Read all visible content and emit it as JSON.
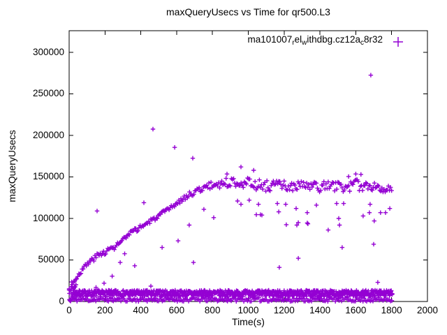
{
  "chart_data": {
    "type": "scatter",
    "title": "maxQueryUsecs vs Time for qr500.L3",
    "xlabel": "Time(s)",
    "ylabel": "maxQueryUsecs",
    "xlim": [
      0,
      2000
    ],
    "ylim": [
      0,
      326000
    ],
    "xticks": [
      0,
      200,
      400,
      600,
      800,
      1000,
      1200,
      1400,
      1600,
      1800,
      2000
    ],
    "yticks": [
      0,
      50000,
      100000,
      150000,
      200000,
      250000,
      300000
    ],
    "grid": false,
    "marker": "plus",
    "marker_color": "#9400d3",
    "axis_color": "#000000",
    "legend": {
      "position": "top-right-inside",
      "entries": [
        {
          "label_plain": "ma101007_rel_withdbg.cz12a_c8r32",
          "label_segments": [
            {
              "text": "ma101007"
            },
            {
              "text": "r",
              "sub": true
            },
            {
              "text": "el"
            },
            {
              "text": "w",
              "sub": true
            },
            {
              "text": "ithdbg.cz12a"
            },
            {
              "text": "c",
              "sub": true
            },
            {
              "text": "8r32"
            }
          ],
          "marker": "plus",
          "color": "#9400d3"
        }
      ]
    },
    "series": [
      {
        "name": "startup-cluster",
        "seed": 13,
        "step": 1.6,
        "control_points": [
          [
            0,
            13500
          ],
          [
            42,
            13500
          ]
        ],
        "jitter": 13500,
        "clip": [
          500,
          27500
        ]
      },
      {
        "name": "floor-band",
        "seed": 7,
        "step": 2,
        "control_points": [
          [
            18,
            9700
          ],
          [
            1805,
            9700
          ]
        ],
        "jitter": 3800,
        "clip": [
          5800,
          13600
        ]
      },
      {
        "name": "sub-floor",
        "seed": 11,
        "step": 7,
        "control_points": [
          [
            2,
            2300
          ],
          [
            1805,
            2300
          ]
        ],
        "jitter": 2400,
        "clip": [
          100,
          4800
        ]
      },
      {
        "name": "main-curve",
        "seed": 3,
        "step": 6,
        "control_points": [
          [
            0,
            13000
          ],
          [
            50,
            32000
          ],
          [
            100,
            45000
          ],
          [
            150,
            54000
          ],
          [
            200,
            60000
          ],
          [
            250,
            65000
          ],
          [
            300,
            74000
          ],
          [
            350,
            83000
          ],
          [
            400,
            90000
          ],
          [
            450,
            96000
          ],
          [
            500,
            103000
          ],
          [
            550,
            110000
          ],
          [
            600,
            118000
          ],
          [
            650,
            126000
          ],
          [
            700,
            132000
          ],
          [
            750,
            137000
          ],
          [
            800,
            140000
          ],
          [
            850,
            142000
          ],
          [
            900,
            143500
          ],
          [
            950,
            144500
          ],
          [
            1000,
            142500
          ],
          [
            1050,
            140500
          ],
          [
            1100,
            139000
          ],
          [
            1150,
            140500
          ],
          [
            1200,
            139000
          ],
          [
            1250,
            137500
          ],
          [
            1300,
            139500
          ],
          [
            1350,
            138500
          ],
          [
            1400,
            137500
          ],
          [
            1450,
            139500
          ],
          [
            1500,
            138500
          ],
          [
            1550,
            137500
          ],
          [
            1600,
            140500
          ],
          [
            1650,
            138500
          ],
          [
            1700,
            139500
          ],
          [
            1750,
            138000
          ],
          [
            1800,
            134000
          ]
        ],
        "jitter": [
          [
            0,
            2000
          ],
          [
            100,
            3200
          ],
          [
            300,
            3200
          ],
          [
            600,
            2500
          ],
          [
            800,
            4500
          ],
          [
            950,
            6500
          ],
          [
            1800,
            6500
          ]
        ],
        "clip": [
          1000,
          326000
        ]
      },
      {
        "name": "outliers",
        "seed": 1,
        "points": [
          [
            150,
            17000
          ],
          [
            156,
            109000
          ],
          [
            195,
            22000
          ],
          [
            240,
            30500
          ],
          [
            285,
            47000
          ],
          [
            310,
            57500
          ],
          [
            366,
            43000
          ],
          [
            417,
            119000
          ],
          [
            456,
            18500
          ],
          [
            468,
            207500
          ],
          [
            519,
            65000
          ],
          [
            589,
            185500
          ],
          [
            608,
            73000
          ],
          [
            670,
            92000
          ],
          [
            690,
            172500
          ],
          [
            694,
            47000
          ],
          [
            752,
            111000
          ],
          [
            807,
            101000
          ],
          [
            881,
            153500
          ],
          [
            940,
            121000
          ],
          [
            959,
            162000
          ],
          [
            959,
            117000
          ],
          [
            1005,
            122000
          ],
          [
            1030,
            158000
          ],
          [
            1045,
            104500
          ],
          [
            1057,
            117000
          ],
          [
            1068,
            104500
          ],
          [
            1076,
            104000
          ],
          [
            1162,
            118000
          ],
          [
            1170,
            108000
          ],
          [
            1173,
            41000
          ],
          [
            1209,
            117000
          ],
          [
            1212,
            92500
          ],
          [
            1267,
            112000
          ],
          [
            1271,
            92000
          ],
          [
            1279,
            95000
          ],
          [
            1279,
            52000
          ],
          [
            1329,
            107000
          ],
          [
            1329,
            94500
          ],
          [
            1333,
            93500
          ],
          [
            1380,
            116000
          ],
          [
            1446,
            86000
          ],
          [
            1493,
            118000
          ],
          [
            1505,
            100000
          ],
          [
            1509,
            92000
          ],
          [
            1524,
            65000
          ],
          [
            1532,
            118000
          ],
          [
            1560,
            150500
          ],
          [
            1600,
            153500
          ],
          [
            1629,
            153000
          ],
          [
            1641,
            103000
          ],
          [
            1676,
            107000
          ],
          [
            1680,
            117000
          ],
          [
            1684,
            272500
          ],
          [
            1700,
            69000
          ],
          [
            1703,
            97000
          ],
          [
            1723,
            23000
          ],
          [
            1738,
            107000
          ],
          [
            1766,
            107000
          ],
          [
            1790,
            112000
          ]
        ]
      }
    ]
  }
}
